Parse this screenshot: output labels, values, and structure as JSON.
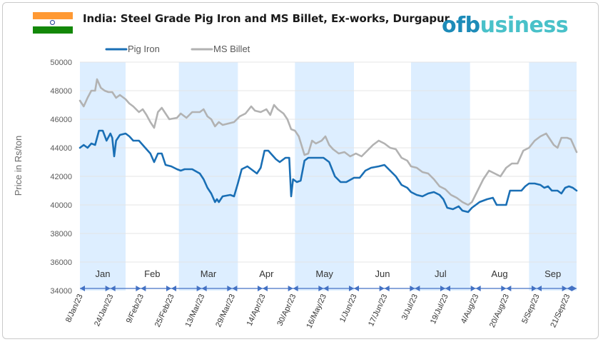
{
  "header": {
    "title": "India: Steel Grade Pig Iron and MS Billet, Ex-works, Durgapur",
    "flag_colors": [
      "#ff9933",
      "#ffffff",
      "#138808"
    ],
    "flag_icon": "india-flag-icon",
    "logo_parts": [
      "of",
      "b",
      "usiness"
    ],
    "logo_colors": {
      "of": "#1d8bb8",
      "b": "#1d8bb8",
      "usiness": "#49c1c9"
    }
  },
  "chart_data": {
    "type": "line",
    "title": "India: Steel Grade Pig Iron and MS Billet, Ex-works, Durgapur",
    "ylabel": "Price in Rs/ton",
    "xlabel": "",
    "ylim": [
      34000,
      50000
    ],
    "yticks": [
      34000,
      36000,
      38000,
      40000,
      42000,
      44000,
      46000,
      48000,
      50000
    ],
    "xrange": [
      "2023-01-08",
      "2023-09-26"
    ],
    "xticks": [
      {
        "date": "2023-01-08",
        "label": "8/Jan/23"
      },
      {
        "date": "2023-01-24",
        "label": "24/Jan/23"
      },
      {
        "date": "2023-02-09",
        "label": "9/Feb/23"
      },
      {
        "date": "2023-02-25",
        "label": "25/Feb/23"
      },
      {
        "date": "2023-03-13",
        "label": "13/Mar/23"
      },
      {
        "date": "2023-03-29",
        "label": "29/Mar/23"
      },
      {
        "date": "2023-04-14",
        "label": "14/Apr/23"
      },
      {
        "date": "2023-04-30",
        "label": "30/Apr/23"
      },
      {
        "date": "2023-05-16",
        "label": "16/May/23"
      },
      {
        "date": "2023-06-01",
        "label": "1/Jun/23"
      },
      {
        "date": "2023-06-17",
        "label": "17/Jun/23"
      },
      {
        "date": "2023-07-03",
        "label": "3/Jul/23"
      },
      {
        "date": "2023-07-19",
        "label": "19/Jul/23"
      },
      {
        "date": "2023-08-04",
        "label": "4/Aug/23"
      },
      {
        "date": "2023-08-20",
        "label": "20/Aug/23"
      },
      {
        "date": "2023-09-05",
        "label": "5/Sep/23"
      },
      {
        "date": "2023-09-21",
        "label": "21/Sep/23"
      }
    ],
    "months": [
      {
        "label": "Jan",
        "start": "2023-01-08",
        "end": "2023-02-01",
        "shaded": true
      },
      {
        "label": "Feb",
        "start": "2023-02-01",
        "end": "2023-03-01",
        "shaded": false
      },
      {
        "label": "Mar",
        "start": "2023-03-01",
        "end": "2023-04-01",
        "shaded": true
      },
      {
        "label": "Apr",
        "start": "2023-04-01",
        "end": "2023-05-01",
        "shaded": false
      },
      {
        "label": "May",
        "start": "2023-05-01",
        "end": "2023-06-01",
        "shaded": true
      },
      {
        "label": "Jun",
        "start": "2023-06-01",
        "end": "2023-07-01",
        "shaded": false
      },
      {
        "label": "Jul",
        "start": "2023-07-01",
        "end": "2023-08-01",
        "shaded": true
      },
      {
        "label": "Aug",
        "start": "2023-08-01",
        "end": "2023-09-01",
        "shaded": false
      },
      {
        "label": "Sep",
        "start": "2023-09-01",
        "end": "2023-09-26",
        "shaded": true
      }
    ],
    "shade_color": "#ddeeff",
    "legend_position": "top-left",
    "grid": "horizontal",
    "series": [
      {
        "name": "Pig Iron",
        "color": "#1a6fb5",
        "points": [
          [
            "2023-01-08",
            44000
          ],
          [
            "2023-01-10",
            44200
          ],
          [
            "2023-01-12",
            44000
          ],
          [
            "2023-01-14",
            44300
          ],
          [
            "2023-01-16",
            44200
          ],
          [
            "2023-01-18",
            45200
          ],
          [
            "2023-01-20",
            45200
          ],
          [
            "2023-01-22",
            44500
          ],
          [
            "2023-01-24",
            45000
          ],
          [
            "2023-01-25",
            44700
          ],
          [
            "2023-01-26",
            43400
          ],
          [
            "2023-01-27",
            44500
          ],
          [
            "2023-01-29",
            44900
          ],
          [
            "2023-02-01",
            45000
          ],
          [
            "2023-02-03",
            44800
          ],
          [
            "2023-02-05",
            44500
          ],
          [
            "2023-02-08",
            44500
          ],
          [
            "2023-02-10",
            44200
          ],
          [
            "2023-02-12",
            43900
          ],
          [
            "2023-02-14",
            43600
          ],
          [
            "2023-02-16",
            43000
          ],
          [
            "2023-02-18",
            43600
          ],
          [
            "2023-02-20",
            43600
          ],
          [
            "2023-02-22",
            42800
          ],
          [
            "2023-02-25",
            42700
          ],
          [
            "2023-02-28",
            42500
          ],
          [
            "2023-03-02",
            42400
          ],
          [
            "2023-03-04",
            42500
          ],
          [
            "2023-03-08",
            42500
          ],
          [
            "2023-03-12",
            42200
          ],
          [
            "2023-03-14",
            41800
          ],
          [
            "2023-03-16",
            41200
          ],
          [
            "2023-03-18",
            40800
          ],
          [
            "2023-03-20",
            40200
          ],
          [
            "2023-03-21",
            40400
          ],
          [
            "2023-03-22",
            40200
          ],
          [
            "2023-03-24",
            40600
          ],
          [
            "2023-03-28",
            40700
          ],
          [
            "2023-03-30",
            40600
          ],
          [
            "2023-04-01",
            41500
          ],
          [
            "2023-04-03",
            42500
          ],
          [
            "2023-04-06",
            42700
          ],
          [
            "2023-04-09",
            42400
          ],
          [
            "2023-04-11",
            42200
          ],
          [
            "2023-04-13",
            42600
          ],
          [
            "2023-04-15",
            43800
          ],
          [
            "2023-04-17",
            43800
          ],
          [
            "2023-04-19",
            43500
          ],
          [
            "2023-04-21",
            43200
          ],
          [
            "2023-04-23",
            43000
          ],
          [
            "2023-04-26",
            43300
          ],
          [
            "2023-04-28",
            43300
          ],
          [
            "2023-04-29",
            40600
          ],
          [
            "2023-04-30",
            41800
          ],
          [
            "2023-05-02",
            41600
          ],
          [
            "2023-05-04",
            41700
          ],
          [
            "2023-05-06",
            43100
          ],
          [
            "2023-05-08",
            43300
          ],
          [
            "2023-05-12",
            43300
          ],
          [
            "2023-05-16",
            43300
          ],
          [
            "2023-05-19",
            43000
          ],
          [
            "2023-05-22",
            42000
          ],
          [
            "2023-05-25",
            41600
          ],
          [
            "2023-05-28",
            41600
          ],
          [
            "2023-06-01",
            41900
          ],
          [
            "2023-06-04",
            41900
          ],
          [
            "2023-06-07",
            42400
          ],
          [
            "2023-06-10",
            42600
          ],
          [
            "2023-06-14",
            42700
          ],
          [
            "2023-06-17",
            42800
          ],
          [
            "2023-06-20",
            42400
          ],
          [
            "2023-06-23",
            42000
          ],
          [
            "2023-06-26",
            41400
          ],
          [
            "2023-06-29",
            41200
          ],
          [
            "2023-07-01",
            40900
          ],
          [
            "2023-07-04",
            40700
          ],
          [
            "2023-07-07",
            40600
          ],
          [
            "2023-07-10",
            40800
          ],
          [
            "2023-07-13",
            40900
          ],
          [
            "2023-07-16",
            40700
          ],
          [
            "2023-07-18",
            40400
          ],
          [
            "2023-07-20",
            39800
          ],
          [
            "2023-07-23",
            39700
          ],
          [
            "2023-07-26",
            39900
          ],
          [
            "2023-07-28",
            39600
          ],
          [
            "2023-07-31",
            39500
          ],
          [
            "2023-08-02",
            39800
          ],
          [
            "2023-08-04",
            40000
          ],
          [
            "2023-08-06",
            40200
          ],
          [
            "2023-08-08",
            40300
          ],
          [
            "2023-08-10",
            40400
          ],
          [
            "2023-08-13",
            40500
          ],
          [
            "2023-08-15",
            40000
          ],
          [
            "2023-08-18",
            40000
          ],
          [
            "2023-08-20",
            40000
          ],
          [
            "2023-08-22",
            41000
          ],
          [
            "2023-08-25",
            41000
          ],
          [
            "2023-08-28",
            41000
          ],
          [
            "2023-08-30",
            41300
          ],
          [
            "2023-09-01",
            41500
          ],
          [
            "2023-09-04",
            41500
          ],
          [
            "2023-09-07",
            41400
          ],
          [
            "2023-09-09",
            41200
          ],
          [
            "2023-09-11",
            41300
          ],
          [
            "2023-09-13",
            41000
          ],
          [
            "2023-09-16",
            41000
          ],
          [
            "2023-09-18",
            40800
          ],
          [
            "2023-09-20",
            41200
          ],
          [
            "2023-09-22",
            41300
          ],
          [
            "2023-09-24",
            41200
          ],
          [
            "2023-09-26",
            41000
          ]
        ]
      },
      {
        "name": "MS Billet",
        "color": "#b2b2b2",
        "points": [
          [
            "2023-01-08",
            47300
          ],
          [
            "2023-01-10",
            46900
          ],
          [
            "2023-01-12",
            47500
          ],
          [
            "2023-01-14",
            48000
          ],
          [
            "2023-01-16",
            48000
          ],
          [
            "2023-01-17",
            48800
          ],
          [
            "2023-01-19",
            48200
          ],
          [
            "2023-01-21",
            48000
          ],
          [
            "2023-01-23",
            47900
          ],
          [
            "2023-01-25",
            47900
          ],
          [
            "2023-01-27",
            47500
          ],
          [
            "2023-01-29",
            47700
          ],
          [
            "2023-02-01",
            47400
          ],
          [
            "2023-02-03",
            47100
          ],
          [
            "2023-02-05",
            46900
          ],
          [
            "2023-02-08",
            46500
          ],
          [
            "2023-02-10",
            46700
          ],
          [
            "2023-02-12",
            46300
          ],
          [
            "2023-02-14",
            45800
          ],
          [
            "2023-02-16",
            45400
          ],
          [
            "2023-02-18",
            46500
          ],
          [
            "2023-02-20",
            46800
          ],
          [
            "2023-02-22",
            46400
          ],
          [
            "2023-02-24",
            46000
          ],
          [
            "2023-02-28",
            46100
          ],
          [
            "2023-03-02",
            46400
          ],
          [
            "2023-03-05",
            46100
          ],
          [
            "2023-03-08",
            46500
          ],
          [
            "2023-03-12",
            46500
          ],
          [
            "2023-03-14",
            46700
          ],
          [
            "2023-03-16",
            46200
          ],
          [
            "2023-03-18",
            46000
          ],
          [
            "2023-03-20",
            45500
          ],
          [
            "2023-03-22",
            45800
          ],
          [
            "2023-03-24",
            45600
          ],
          [
            "2023-03-27",
            45700
          ],
          [
            "2023-03-30",
            45800
          ],
          [
            "2023-04-02",
            46200
          ],
          [
            "2023-04-05",
            46400
          ],
          [
            "2023-04-08",
            46900
          ],
          [
            "2023-04-10",
            46600
          ],
          [
            "2023-04-13",
            46500
          ],
          [
            "2023-04-16",
            46700
          ],
          [
            "2023-04-18",
            46300
          ],
          [
            "2023-04-20",
            47000
          ],
          [
            "2023-04-22",
            46700
          ],
          [
            "2023-04-25",
            46400
          ],
          [
            "2023-04-27",
            46000
          ],
          [
            "2023-04-29",
            45300
          ],
          [
            "2023-05-01",
            45200
          ],
          [
            "2023-05-03",
            44800
          ],
          [
            "2023-05-06",
            43500
          ],
          [
            "2023-05-08",
            43600
          ],
          [
            "2023-05-10",
            44500
          ],
          [
            "2023-05-12",
            44300
          ],
          [
            "2023-05-15",
            44500
          ],
          [
            "2023-05-17",
            44800
          ],
          [
            "2023-05-19",
            44200
          ],
          [
            "2023-05-21",
            43900
          ],
          [
            "2023-05-24",
            43600
          ],
          [
            "2023-05-27",
            43700
          ],
          [
            "2023-05-30",
            43400
          ],
          [
            "2023-06-02",
            43600
          ],
          [
            "2023-06-05",
            43400
          ],
          [
            "2023-06-08",
            43800
          ],
          [
            "2023-06-11",
            44200
          ],
          [
            "2023-06-14",
            44500
          ],
          [
            "2023-06-17",
            44300
          ],
          [
            "2023-06-20",
            44000
          ],
          [
            "2023-06-23",
            43900
          ],
          [
            "2023-06-26",
            43300
          ],
          [
            "2023-06-29",
            43100
          ],
          [
            "2023-07-01",
            42700
          ],
          [
            "2023-07-04",
            42600
          ],
          [
            "2023-07-07",
            42300
          ],
          [
            "2023-07-10",
            42200
          ],
          [
            "2023-07-13",
            41800
          ],
          [
            "2023-07-16",
            41300
          ],
          [
            "2023-07-19",
            41100
          ],
          [
            "2023-07-22",
            40700
          ],
          [
            "2023-07-25",
            40500
          ],
          [
            "2023-07-28",
            40200
          ],
          [
            "2023-07-31",
            40000
          ],
          [
            "2023-08-02",
            40200
          ],
          [
            "2023-08-05",
            41000
          ],
          [
            "2023-08-08",
            41800
          ],
          [
            "2023-08-11",
            42400
          ],
          [
            "2023-08-14",
            42200
          ],
          [
            "2023-08-17",
            42000
          ],
          [
            "2023-08-20",
            42600
          ],
          [
            "2023-08-23",
            42900
          ],
          [
            "2023-08-26",
            42900
          ],
          [
            "2023-08-29",
            43800
          ],
          [
            "2023-09-01",
            44000
          ],
          [
            "2023-09-04",
            44500
          ],
          [
            "2023-09-07",
            44800
          ],
          [
            "2023-09-10",
            45000
          ],
          [
            "2023-09-12",
            44600
          ],
          [
            "2023-09-14",
            44200
          ],
          [
            "2023-09-16",
            44000
          ],
          [
            "2023-09-18",
            44700
          ],
          [
            "2023-09-21",
            44700
          ],
          [
            "2023-09-23",
            44600
          ],
          [
            "2023-09-26",
            43700
          ]
        ]
      }
    ]
  }
}
